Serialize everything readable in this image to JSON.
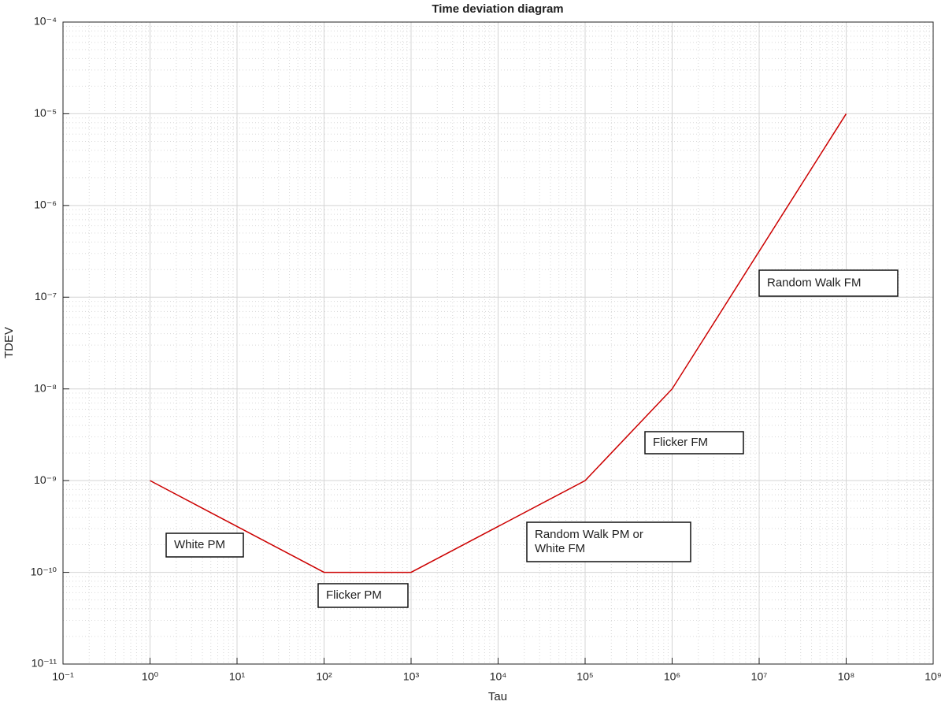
{
  "chart_data": {
    "type": "line",
    "title": "Time deviation diagram",
    "x_label": "Tau",
    "y_label": "TDEV",
    "log_x": true,
    "log_y": true,
    "grid": true,
    "minor_grid": true,
    "xlim": [
      0.1,
      1000000000
    ],
    "ylim": [
      1e-11,
      0.0001
    ],
    "xticks": [
      {
        "value": 0.1,
        "label": "10⁻¹"
      },
      {
        "value": 1,
        "label": "10⁰"
      },
      {
        "value": 10,
        "label": "10¹"
      },
      {
        "value": 100,
        "label": "10²"
      },
      {
        "value": 1000,
        "label": "10³"
      },
      {
        "value": 10000,
        "label": "10⁴"
      },
      {
        "value": 100000,
        "label": "10⁵"
      },
      {
        "value": 1000000,
        "label": "10⁶"
      },
      {
        "value": 10000000,
        "label": "10⁷"
      },
      {
        "value": 100000000,
        "label": "10⁸"
      },
      {
        "value": 1000000000,
        "label": "10⁹"
      }
    ],
    "yticks": [
      {
        "value": 1e-11,
        "label": "10⁻¹¹"
      },
      {
        "value": 1e-10,
        "label": "10⁻¹⁰"
      },
      {
        "value": 1e-09,
        "label": "10⁻⁹"
      },
      {
        "value": 1e-08,
        "label": "10⁻⁸"
      },
      {
        "value": 1e-07,
        "label": "10⁻⁷"
      },
      {
        "value": 1e-06,
        "label": "10⁻⁶"
      },
      {
        "value": 1e-05,
        "label": "10⁻⁵"
      },
      {
        "value": 0.0001,
        "label": "10⁻⁴"
      }
    ],
    "x": [
      1,
      100,
      1000,
      100000,
      1000000,
      100000000
    ],
    "series": [
      {
        "color": "#cc0000",
        "values": [
          1e-09,
          1e-10,
          1e-10,
          1e-09,
          1e-08,
          1e-05
        ]
      }
    ],
    "annotations": [
      [
        "White PM"
      ],
      [
        "Flicker PM"
      ],
      [
        "Random Walk PM or",
        "White FM"
      ],
      [
        "Flicker FM"
      ],
      [
        "Random Walk FM"
      ]
    ]
  }
}
